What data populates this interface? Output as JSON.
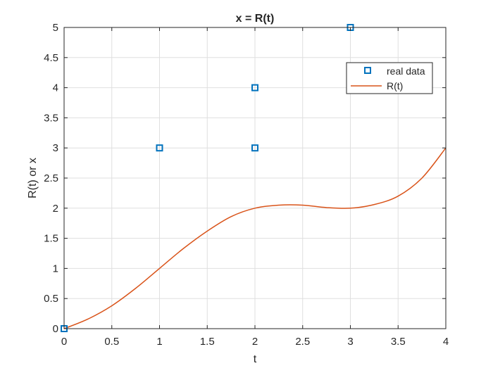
{
  "colors": {
    "marker": "#0072BD",
    "curve": "#D95319",
    "grid": "#DFDFDF",
    "axis": "#262626"
  },
  "chart_data": {
    "type": "line",
    "title": "x = R(t)",
    "xlabel": "t",
    "ylabel": "R(t) or x",
    "xlim": [
      0,
      4
    ],
    "ylim": [
      0,
      5
    ],
    "xticks": [
      0,
      0.5,
      1,
      1.5,
      2,
      2.5,
      3,
      3.5,
      4
    ],
    "xtick_labels": [
      "0",
      "0.5",
      "1",
      "1.5",
      "2",
      "2.5",
      "3",
      "3.5",
      "4"
    ],
    "yticks": [
      0,
      0.5,
      1,
      1.5,
      2,
      2.5,
      3,
      3.5,
      4,
      4.5,
      5
    ],
    "ytick_labels": [
      "0",
      "0.5",
      "1",
      "1.5",
      "2",
      "2.5",
      "3",
      "3.5",
      "4",
      "4.5",
      "5"
    ],
    "grid": true,
    "legend_position": "top-right",
    "series": [
      {
        "name": "real data",
        "kind": "scatter",
        "marker": "square",
        "x": [
          0,
          1,
          2,
          2,
          3
        ],
        "y": [
          0,
          3,
          4,
          3,
          5
        ]
      },
      {
        "name": "R(t)",
        "kind": "line",
        "x": [
          0,
          0.25,
          0.5,
          0.75,
          1,
          1.25,
          1.5,
          1.75,
          2,
          2.25,
          2.5,
          2.75,
          3,
          3.25,
          3.5,
          3.75,
          4
        ],
        "y": [
          0,
          0.16,
          0.38,
          0.67,
          1.0,
          1.33,
          1.62,
          1.86,
          2.0,
          2.05,
          2.05,
          2.01,
          2.0,
          2.06,
          2.2,
          2.5,
          3.0
        ]
      }
    ]
  }
}
